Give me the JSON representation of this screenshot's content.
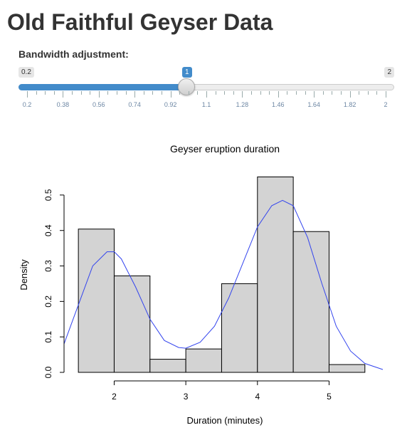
{
  "app": {
    "title": "Old Faithful Geyser Data"
  },
  "slider": {
    "label": "Bandwidth adjustment:",
    "min": 0.2,
    "max": 2,
    "value": 1,
    "min_label": "0.2",
    "max_label": "2",
    "value_label": "1",
    "tick_labels": [
      "0.2",
      "0.38",
      "0.56",
      "0.74",
      "0.92",
      "1.1",
      "1.28",
      "1.46",
      "1.64",
      "1.82",
      "2"
    ],
    "fill_color": "#428bca"
  },
  "chart_data": {
    "type": "bar",
    "title": "Geyser eruption duration",
    "xlabel": "Duration (minutes)",
    "ylabel": "Density",
    "bins": [
      [
        1.5,
        2.0
      ],
      [
        2.0,
        2.5
      ],
      [
        2.5,
        3.0
      ],
      [
        3.0,
        3.5
      ],
      [
        3.5,
        4.0
      ],
      [
        4.0,
        4.5
      ],
      [
        4.5,
        5.0
      ],
      [
        5.0,
        5.5
      ]
    ],
    "values": [
      0.404,
      0.272,
      0.037,
      0.066,
      0.25,
      0.551,
      0.397,
      0.022
    ],
    "xlim": [
      1.3,
      5.8
    ],
    "ylim": [
      0,
      0.55
    ],
    "x_ticks": [
      "2",
      "3",
      "4",
      "5"
    ],
    "y_ticks": [
      "0.0",
      "0.1",
      "0.2",
      "0.3",
      "0.4",
      "0.5"
    ],
    "density_curve": {
      "x": [
        1.3,
        1.5,
        1.7,
        1.9,
        2.0,
        2.1,
        2.3,
        2.5,
        2.7,
        2.9,
        3.0,
        3.2,
        3.4,
        3.6,
        3.8,
        4.0,
        4.2,
        4.35,
        4.5,
        4.7,
        4.9,
        5.1,
        5.3,
        5.5,
        5.75
      ],
      "y": [
        0.08,
        0.19,
        0.3,
        0.34,
        0.34,
        0.32,
        0.24,
        0.15,
        0.09,
        0.07,
        0.068,
        0.085,
        0.13,
        0.21,
        0.31,
        0.41,
        0.47,
        0.485,
        0.47,
        0.38,
        0.25,
        0.13,
        0.06,
        0.025,
        0.008
      ],
      "color": "#3344ee"
    },
    "bar_fill": "#d3d3d3",
    "grid": false
  }
}
